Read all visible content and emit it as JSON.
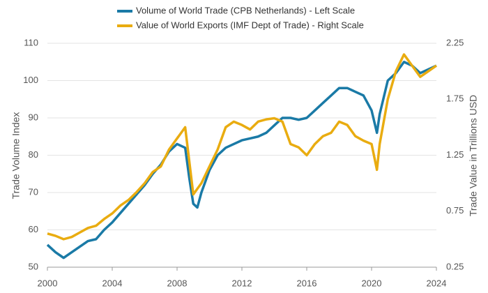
{
  "chart_data": {
    "type": "line",
    "x": [
      2000,
      2000.5,
      2001,
      2001.5,
      2002,
      2002.5,
      2003,
      2003.5,
      2004,
      2004.5,
      2005,
      2005.5,
      2006,
      2006.5,
      2007,
      2007.5,
      2008,
      2008.5,
      2008.75,
      2009,
      2009.25,
      2009.5,
      2010,
      2010.5,
      2011,
      2011.5,
      2012,
      2012.5,
      2013,
      2013.5,
      2014,
      2014.5,
      2015,
      2015.5,
      2016,
      2016.5,
      2017,
      2017.5,
      2018,
      2018.5,
      2019,
      2019.5,
      2020,
      2020.33,
      2020.5,
      2021,
      2021.5,
      2022,
      2022.5,
      2023,
      2023.5,
      2024
    ],
    "series": [
      {
        "name": "Volume of World Trade (CPB Netherlands) - Left Scale",
        "color": "#1a7aa6",
        "axis": "y",
        "values": [
          56,
          54,
          52.5,
          54,
          55.5,
          57,
          57.5,
          60,
          62,
          64.5,
          67,
          69.5,
          72,
          75,
          77.5,
          81,
          83,
          82,
          74,
          67,
          66,
          70,
          76,
          80,
          82,
          83,
          84,
          84.5,
          85,
          86,
          88,
          90,
          90,
          89.5,
          90,
          92,
          94,
          96,
          98,
          98,
          97,
          96,
          92,
          86,
          91,
          100,
          102,
          105,
          104,
          102,
          103,
          104
        ]
      },
      {
        "name": "Value of World Exports (IMF Dept of Trade) - Right Scale",
        "color": "#e9ac10",
        "axis": "y2",
        "values": [
          0.55,
          0.53,
          0.5,
          0.52,
          0.56,
          0.6,
          0.62,
          0.68,
          0.73,
          0.8,
          0.85,
          0.92,
          1.0,
          1.1,
          1.15,
          1.3,
          1.4,
          1.5,
          1.2,
          0.9,
          0.95,
          1.0,
          1.15,
          1.3,
          1.5,
          1.55,
          1.52,
          1.48,
          1.55,
          1.57,
          1.58,
          1.55,
          1.35,
          1.32,
          1.25,
          1.35,
          1.42,
          1.45,
          1.55,
          1.52,
          1.42,
          1.38,
          1.35,
          1.12,
          1.35,
          1.75,
          2.0,
          2.15,
          2.05,
          1.95,
          2.0,
          2.05
        ]
      }
    ],
    "ylabel": "Trade Volume Index",
    "y2label": "Trade Value in Trillions USD",
    "xlim": [
      2000,
      2024
    ],
    "xticks": [
      2000,
      2004,
      2008,
      2012,
      2016,
      2020,
      2024
    ],
    "ylim": [
      50,
      110
    ],
    "yticks": [
      50,
      60,
      70,
      80,
      90,
      100,
      110
    ],
    "y2lim": [
      0.25,
      2.25
    ],
    "y2ticks": [
      0.25,
      0.75,
      1.25,
      1.75,
      2.25
    ],
    "grid": true
  }
}
